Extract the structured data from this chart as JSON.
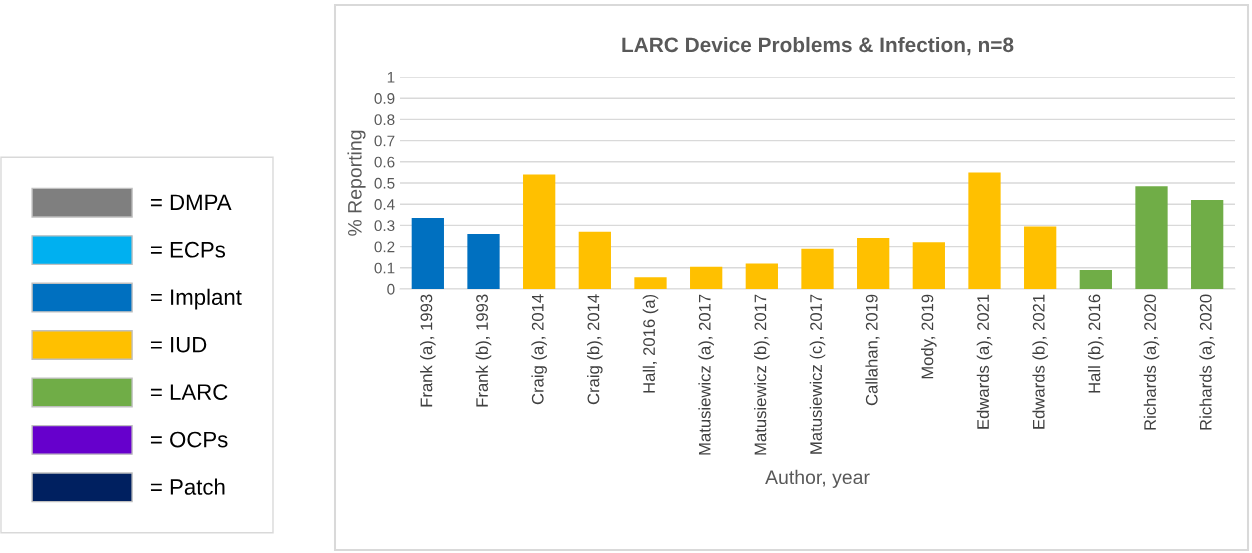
{
  "chart_data": {
    "type": "bar",
    "title": "LARC Device Problems & Infection, n=8",
    "xlabel": "Author, year",
    "ylabel": "% Reporting",
    "categories": [
      "Frank (a), 1993",
      "Frank (b), 1993",
      "Craig (a), 2014",
      "Craig (b), 2014",
      "Hall, 2016 (a)",
      "Matusiewicz (a), 2017",
      "Matusiewicz (b), 2017",
      "Matusiewicz (c), 2017",
      "Callahan, 2019",
      "Mody, 2019",
      "Edwards (a), 2021",
      "Edwards (b), 2021",
      "Hall (b), 2016",
      "Richards (a), 2020",
      "Richards (a), 2020"
    ],
    "stacked": true,
    "series": [
      {
        "name": "= DMPA",
        "color": "#7f7f7f",
        "values": [
          null,
          null,
          null,
          null,
          null,
          null,
          null,
          null,
          null,
          null,
          null,
          null,
          null,
          null,
          null
        ]
      },
      {
        "name": "= ECPs",
        "color": "#00b0f0",
        "values": [
          null,
          null,
          null,
          null,
          null,
          null,
          null,
          null,
          null,
          null,
          null,
          null,
          null,
          null,
          null
        ]
      },
      {
        "name": "= Implant",
        "color": "#0070c0",
        "values": [
          0.335,
          0.26,
          null,
          null,
          null,
          null,
          null,
          null,
          null,
          null,
          null,
          null,
          null,
          null,
          null
        ]
      },
      {
        "name": "= IUD",
        "color": "#ffc000",
        "values": [
          null,
          null,
          0.54,
          0.27,
          0.055,
          0.105,
          0.12,
          0.19,
          0.24,
          0.22,
          0.55,
          0.295,
          null,
          null,
          null
        ]
      },
      {
        "name": "= LARC",
        "color": "#70ad47",
        "values": [
          null,
          null,
          null,
          null,
          null,
          null,
          null,
          null,
          null,
          null,
          null,
          null,
          0.09,
          0.485,
          0.42
        ]
      },
      {
        "name": "= OCPs",
        "color": "#6600cc",
        "values": [
          null,
          null,
          null,
          null,
          null,
          null,
          null,
          null,
          null,
          null,
          null,
          null,
          null,
          null,
          null
        ]
      },
      {
        "name": "= Patch",
        "color": "#002060",
        "values": [
          null,
          null,
          null,
          null,
          null,
          null,
          null,
          null,
          null,
          null,
          null,
          null,
          null,
          null,
          null
        ]
      }
    ],
    "ylim": [
      0,
      1
    ],
    "yticks": [
      0,
      0.1,
      0.2,
      0.3,
      0.4,
      0.5,
      0.6,
      0.7,
      0.8,
      0.9,
      1
    ],
    "grid": "y",
    "legend": "left"
  }
}
